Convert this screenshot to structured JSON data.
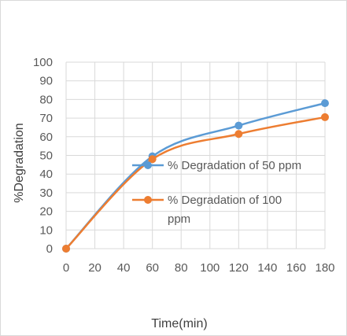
{
  "chart_data": {
    "type": "line",
    "title": "",
    "xlabel": "Time(min)",
    "ylabel": "%Degradation",
    "xlim": [
      0,
      180
    ],
    "ylim": [
      0,
      100
    ],
    "x_ticks": [
      "0",
      "20",
      "40",
      "60",
      "80",
      "100",
      "120",
      "140",
      "160",
      "180"
    ],
    "y_ticks": [
      "0",
      "10",
      "20",
      "30",
      "40",
      "50",
      "60",
      "70",
      "80",
      "90",
      "100"
    ],
    "grid": true,
    "legend_position": "center",
    "series": [
      {
        "name": "% Degradation of 50 ppm",
        "color": "#5B9BD5",
        "x": [
          0,
          60,
          120,
          180
        ],
        "y": [
          0,
          49.5,
          66,
          78
        ]
      },
      {
        "name": "% Degradation of 100 ppm",
        "name_lines": [
          "% Degradation of 100",
          "ppm"
        ],
        "color": "#ED7D31",
        "x": [
          0,
          60,
          120,
          180
        ],
        "y": [
          0,
          48,
          61.5,
          70.5
        ]
      }
    ]
  }
}
